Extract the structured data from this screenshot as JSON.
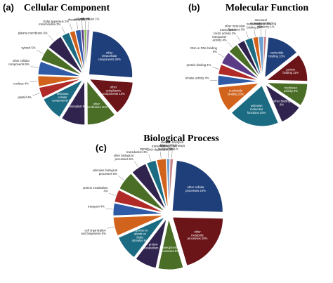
{
  "colors": {
    "navy": "#1f3f7a",
    "maroon": "#6b1519",
    "green": "#4a6e25",
    "darkpurple": "#30244f",
    "teal": "#1b6b82",
    "red": "#b02a28",
    "orange": "#d1631c",
    "blue": "#2f5aa6",
    "violet": "#5b3a86",
    "lightblue": "#6fa0cf",
    "pink": "#c9838a",
    "lightgreen": "#8fb75a",
    "lavender": "#9e8ac1",
    "cyan": "#2fa0b5",
    "gray": "#8a8a8a"
  },
  "chart_data": [
    {
      "type": "pie",
      "panel": "(a)",
      "title": "Cellular Component",
      "series": [
        {
          "label": "other intracellular components",
          "value": 25,
          "color": "navy"
        },
        {
          "label": "other cytoplasmic components",
          "value": 13,
          "color": "maroon"
        },
        {
          "label": "other membranes",
          "value": 11,
          "color": "green"
        },
        {
          "label": "chloroplast",
          "value": 9,
          "color": "darkpurple"
        },
        {
          "label": "unknown cellular components",
          "value": 9,
          "color": "teal"
        },
        {
          "label": "plastid",
          "value": 4,
          "color": "red"
        },
        {
          "label": "nucleus",
          "value": 4,
          "color": "orange"
        },
        {
          "label": "other cellular components",
          "value": 5,
          "color": "blue"
        },
        {
          "label": "cytosol",
          "value": 5,
          "color": "green"
        },
        {
          "label": "plasma membrane",
          "value": 6,
          "color": "darkpurple"
        },
        {
          "label": "mitochondria",
          "value": 3,
          "color": "teal"
        },
        {
          "label": "Golgi apparatus",
          "value": 2,
          "color": "orange"
        },
        {
          "label": "ribosome",
          "value": 2,
          "color": "blue"
        },
        {
          "label": "cell wall",
          "value": 1,
          "color": "violet"
        },
        {
          "label": "ER",
          "value": 1,
          "color": "lightgreen"
        },
        {
          "label": "extracellular",
          "value": 1,
          "color": "lavender"
        }
      ]
    },
    {
      "type": "pie",
      "panel": "(b)",
      "title": "Molecular Function",
      "series": [
        {
          "label": "nucleotide binding",
          "value": 13,
          "color": "navy"
        },
        {
          "label": "protein binding",
          "value": 11,
          "color": "maroon"
        },
        {
          "label": "hydrolase activity",
          "value": 9,
          "color": "green"
        },
        {
          "label": "other binding",
          "value": 9,
          "color": "darkpurple"
        },
        {
          "label": "unknown molecular functions",
          "value": 20,
          "color": "teal"
        },
        {
          "label": "nucleotide binding",
          "value": 10,
          "color": "orange"
        },
        {
          "label": "kinase activity",
          "value": 4,
          "color": "blue"
        },
        {
          "label": "protein binding",
          "value": 4,
          "color": "red"
        },
        {
          "label": "DNA or RNA binding",
          "value": 5,
          "color": "violet"
        },
        {
          "label": "transporter activity",
          "value": 4,
          "color": "green"
        },
        {
          "label": "transcription factor activity",
          "value": 3,
          "color": "darkpurple"
        },
        {
          "label": "other molecular functions",
          "value": 3,
          "color": "teal"
        },
        {
          "label": "nucleic acid binding",
          "value": 2,
          "color": "orange"
        },
        {
          "label": "structural molecule activity",
          "value": 2,
          "color": "lightblue"
        },
        {
          "label": "receptor binding or activity",
          "value": 1,
          "color": "pink"
        }
      ]
    },
    {
      "type": "pie",
      "panel": "(c)",
      "title": "Biological Process",
      "series": [
        {
          "label": "other cellular processes",
          "value": 24,
          "color": "navy"
        },
        {
          "label": "other metabolic processes",
          "value": 20,
          "color": "maroon"
        },
        {
          "label": "developmental processes",
          "value": 8,
          "color": "green"
        },
        {
          "label": "protein metabolism",
          "value": 7,
          "color": "darkpurple"
        },
        {
          "label": "response to abiotic or biotic stimulus",
          "value": 8,
          "color": "teal"
        },
        {
          "label": "cell organization and biogenesis",
          "value": 6,
          "color": "orange"
        },
        {
          "label": "transport",
          "value": 4,
          "color": "blue"
        },
        {
          "label": "protein metabolism",
          "value": 4,
          "color": "red"
        },
        {
          "label": "unknown biological processes",
          "value": 6,
          "color": "green"
        },
        {
          "label": "other biological processes",
          "value": 5,
          "color": "darkpurple"
        },
        {
          "label": "signal transduction",
          "value": 3,
          "color": "teal"
        },
        {
          "label": "transcription, DNA-dependent",
          "value": 3,
          "color": "orange"
        },
        {
          "label": "DNA or RNA metabolism",
          "value": 1,
          "color": "lightblue"
        },
        {
          "label": "electron transport or energy pathways",
          "value": 1,
          "color": "pink"
        }
      ]
    }
  ]
}
